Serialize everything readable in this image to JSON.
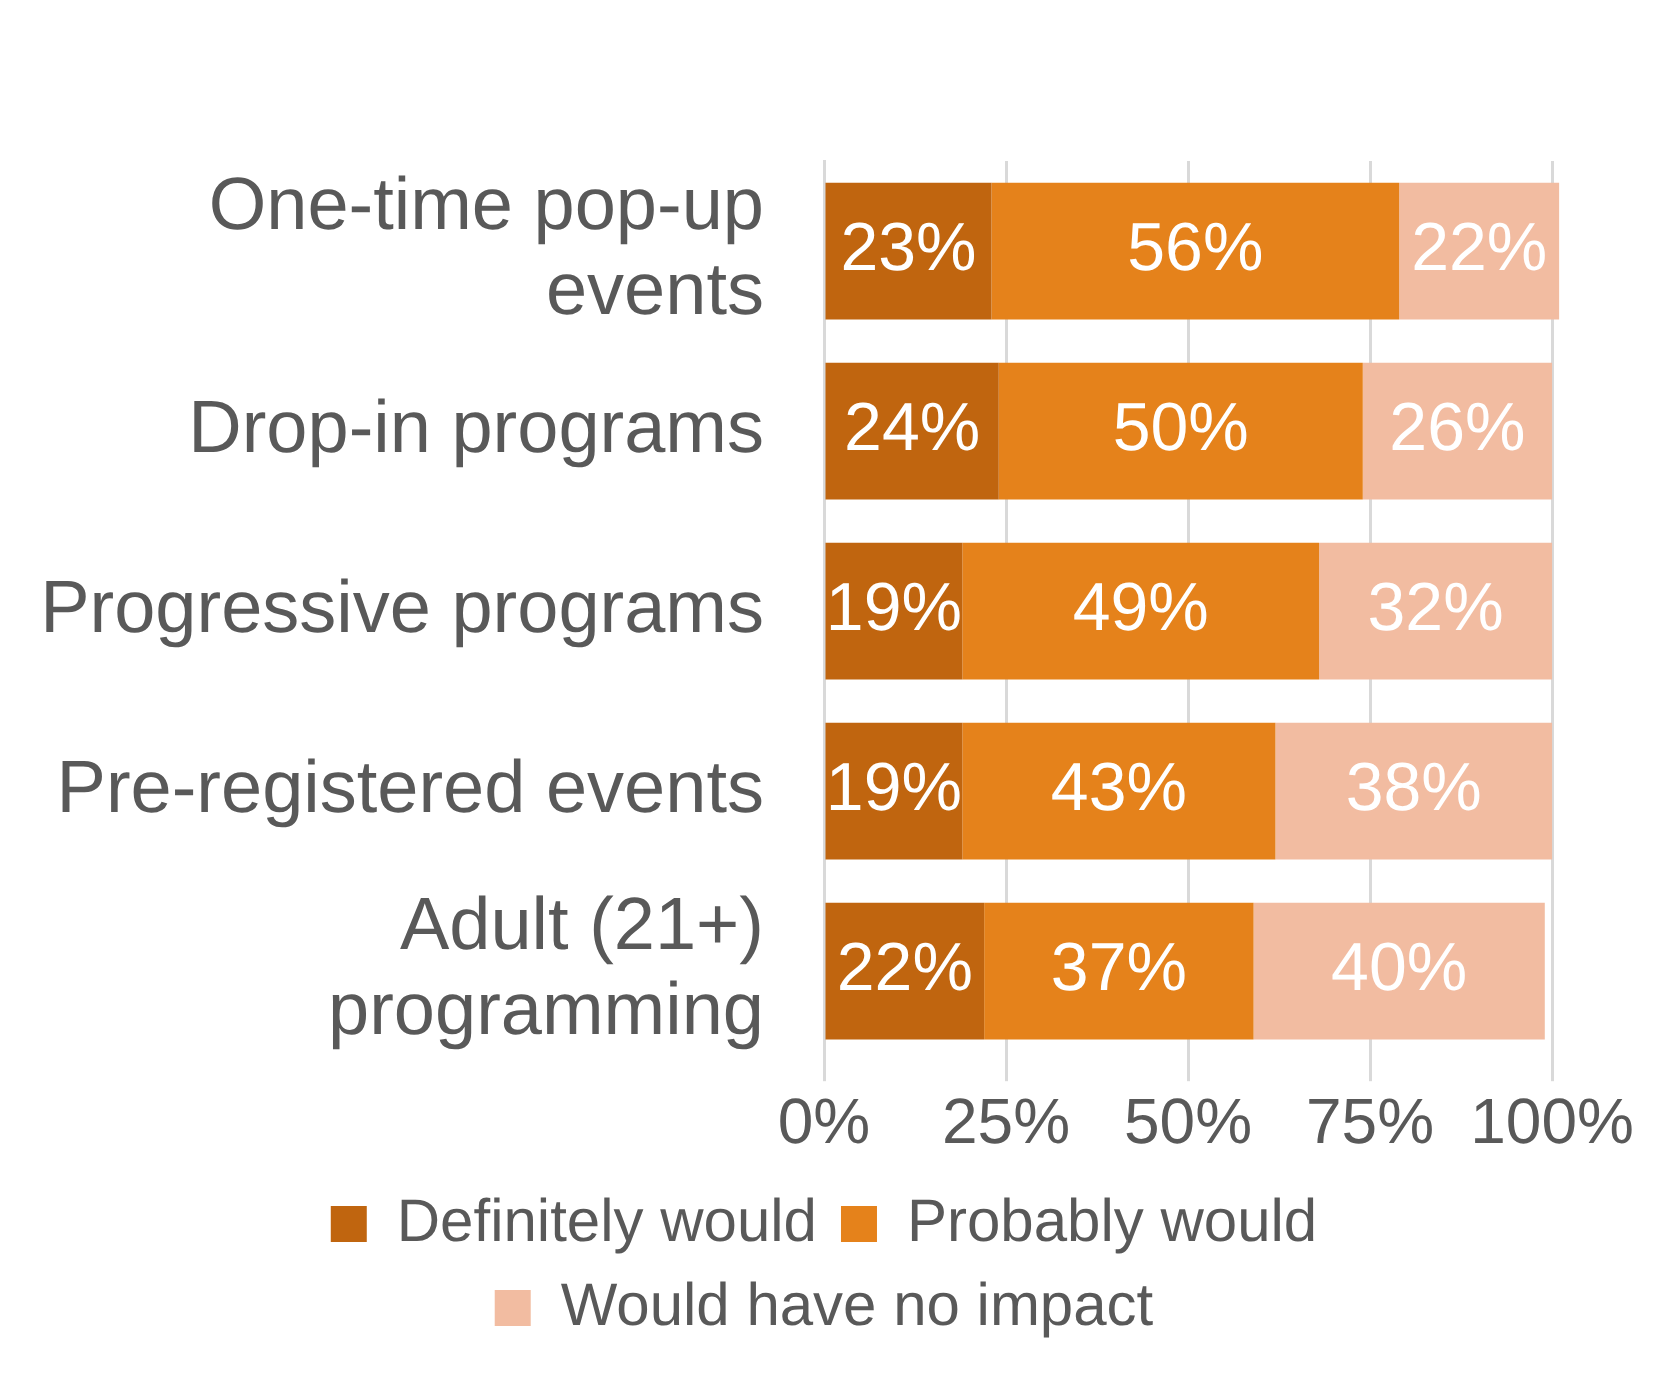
{
  "chart_data": {
    "type": "bar",
    "orientation": "horizontal",
    "stacked": true,
    "categories": [
      "One-time pop-up events",
      "Drop-in programs",
      "Progressive programs",
      "Pre-registered events",
      "Adult (21+) programming"
    ],
    "series": [
      {
        "name": "Definitely would",
        "color": "#c0650f",
        "values": [
          23,
          24,
          19,
          19,
          22
        ],
        "value_labels": [
          "23%",
          "24%",
          "19%",
          "19%",
          "22%"
        ]
      },
      {
        "name": "Probably would",
        "color": "#e5821b",
        "values": [
          56,
          50,
          49,
          43,
          37
        ],
        "value_labels": [
          "56%",
          "50%",
          "49%",
          "43%",
          "37%"
        ]
      },
      {
        "name": "Would have no impact",
        "color": "#f2bca1",
        "values": [
          22,
          26,
          32,
          38,
          40
        ],
        "value_labels": [
          "22%",
          "26%",
          "32%",
          "38%",
          "40%"
        ]
      }
    ],
    "xlim": [
      0,
      101
    ],
    "xticks": [
      {
        "value": 0,
        "label": "0%"
      },
      {
        "value": 25,
        "label": "25%"
      },
      {
        "value": 50,
        "label": "50%"
      },
      {
        "value": 75,
        "label": "75%"
      },
      {
        "value": 100,
        "label": "100%"
      }
    ],
    "grid": "x",
    "legend": "bottom"
  }
}
